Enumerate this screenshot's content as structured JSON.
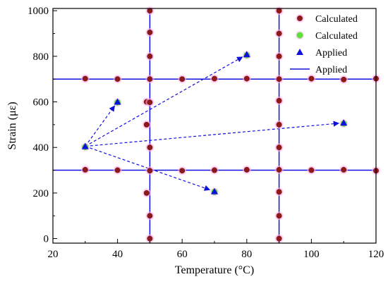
{
  "chart_data": {
    "type": "scatter",
    "title": "",
    "xlabel": "Temperature (°C)",
    "ylabel": "Strain (με)",
    "xlim": [
      20,
      120
    ],
    "ylim": [
      -20,
      1010
    ],
    "xticks": [
      20,
      40,
      60,
      80,
      100,
      120
    ],
    "yticks": [
      0,
      200,
      400,
      600,
      800,
      1000
    ],
    "grid": false,
    "legend_position": "top-right",
    "colors": {
      "calculated_dark": "#8b1a1a",
      "calculated_light": "#5ee03a",
      "applied": "#1010dd",
      "halo": "#ffb0ec"
    },
    "legend": [
      {
        "label": "Calculated",
        "marker": "circle-dark"
      },
      {
        "label": "Calculated",
        "marker": "circle-light"
      },
      {
        "label": "Applied",
        "marker": "triangle"
      },
      {
        "label": "Applied",
        "marker": "line"
      }
    ],
    "applied_lines": {
      "vertical_x": [
        50,
        90
      ],
      "horizontal_y": [
        300,
        700
      ]
    },
    "calculated_dark_points": [
      [
        30,
        702
      ],
      [
        40,
        700
      ],
      [
        50,
        700
      ],
      [
        60,
        700
      ],
      [
        70,
        702
      ],
      [
        80,
        702
      ],
      [
        90,
        700
      ],
      [
        100,
        702
      ],
      [
        110,
        698
      ],
      [
        120,
        702
      ],
      [
        30,
        302
      ],
      [
        40,
        300
      ],
      [
        50,
        298
      ],
      [
        60,
        298
      ],
      [
        70,
        300
      ],
      [
        80,
        302
      ],
      [
        90,
        302
      ],
      [
        100,
        300
      ],
      [
        110,
        302
      ],
      [
        120,
        298
      ],
      [
        50,
        1000
      ],
      [
        50,
        905
      ],
      [
        50,
        800
      ],
      [
        49,
        600
      ],
      [
        50,
        598
      ],
      [
        49,
        500
      ],
      [
        50,
        400
      ],
      [
        49,
        200
      ],
      [
        50,
        100
      ],
      [
        50,
        0
      ],
      [
        90,
        1000
      ],
      [
        90,
        900
      ],
      [
        90,
        800
      ],
      [
        90,
        605
      ],
      [
        90,
        500
      ],
      [
        90,
        400
      ],
      [
        90,
        205
      ],
      [
        90,
        100
      ],
      [
        90,
        0
      ]
    ],
    "calculated_light_points": [
      [
        30,
        402
      ],
      [
        40,
        598
      ],
      [
        70,
        205
      ],
      [
        80,
        805
      ],
      [
        110,
        505
      ]
    ],
    "applied_points": [
      [
        30,
        405
      ],
      [
        40,
        600
      ],
      [
        70,
        207
      ],
      [
        80,
        808
      ],
      [
        110,
        508
      ]
    ],
    "arrows": [
      {
        "from": [
          30,
          405
        ],
        "to": [
          40,
          600
        ]
      },
      {
        "from": [
          30,
          405
        ],
        "to": [
          80,
          808
        ]
      },
      {
        "from": [
          30,
          405
        ],
        "to": [
          110,
          508
        ]
      },
      {
        "from": [
          30,
          405
        ],
        "to": [
          70,
          207
        ]
      }
    ]
  }
}
